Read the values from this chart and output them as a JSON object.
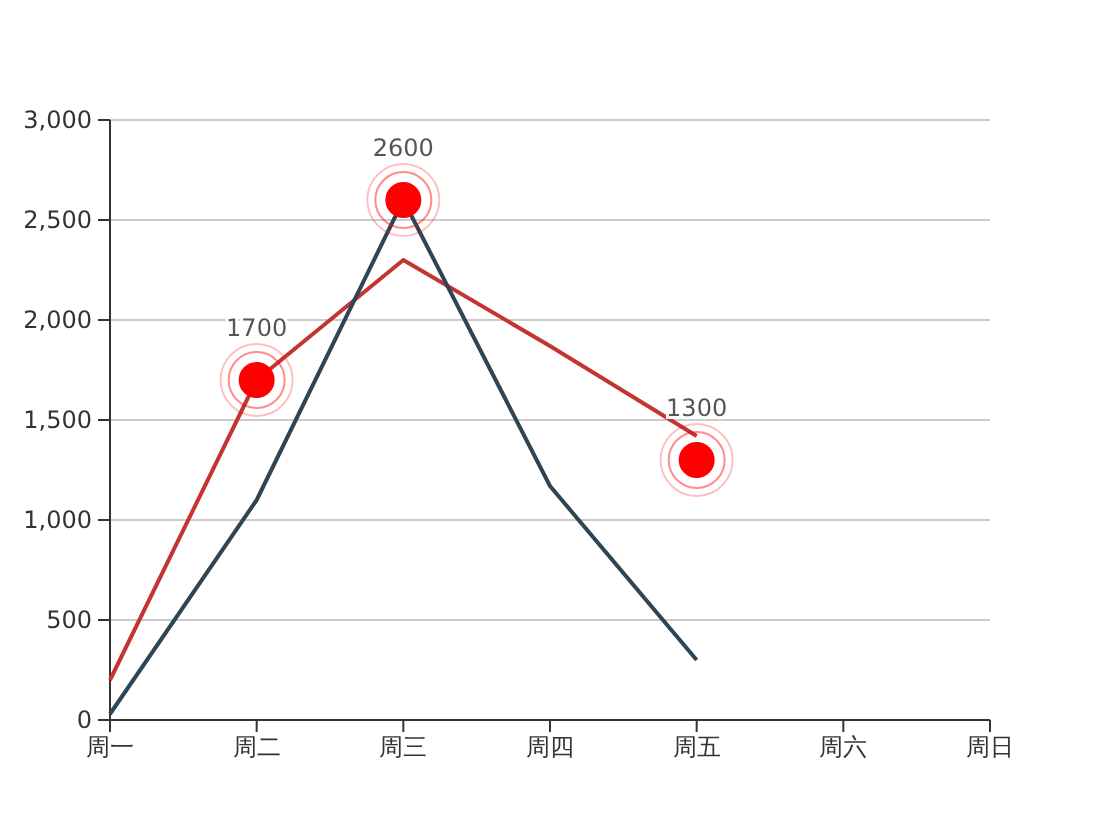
{
  "chart_data": {
    "type": "line",
    "categories": [
      "周一",
      "周二",
      "周三",
      "周四",
      "周五",
      "周六",
      "周日"
    ],
    "series": [
      {
        "color": "#c23531",
        "values": [
          200,
          1700,
          2300,
          1870,
          1420,
          null,
          null
        ]
      },
      {
        "color": "#2f4554",
        "values": [
          30,
          1100,
          2600,
          1170,
          300,
          null,
          null
        ]
      },
      {
        "type": "scatter",
        "marker": "circle",
        "color": "#ff0000",
        "values": [
          null,
          1700,
          2600,
          null,
          1300,
          null,
          null
        ],
        "value_labels": [
          null,
          "1700",
          "2600",
          null,
          "1300",
          null,
          null
        ]
      }
    ],
    "ylim": [
      0,
      3000
    ],
    "yticks": [
      0,
      {
        "value": 500,
        "label": "500"
      },
      {
        "value": 1000,
        "label": "1,000"
      },
      {
        "value": 1500,
        "label": "1,500"
      },
      {
        "value": 2000,
        "label": "2,000"
      },
      {
        "value": 2500,
        "label": "2,500"
      },
      {
        "value": 3000,
        "label": "3,000"
      }
    ],
    "grid": "y",
    "line_style": "solid"
  }
}
